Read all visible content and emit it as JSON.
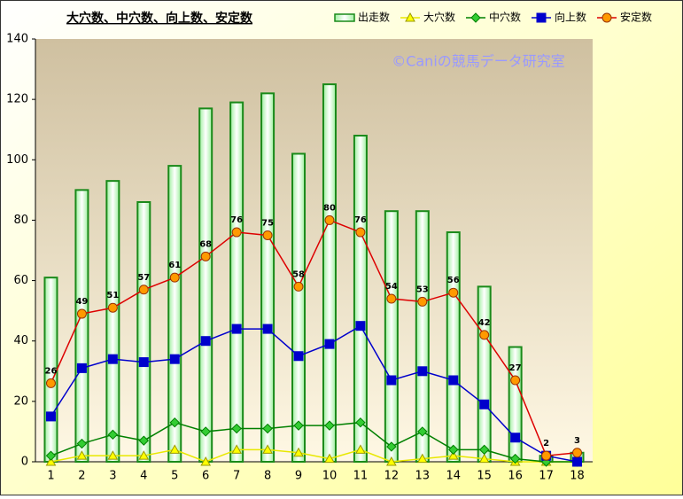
{
  "chart_data": {
    "type": "bar-line",
    "title": "大穴数、中穴数、向上数、安定数",
    "annotation": "©Caniの競馬データ研究室",
    "categories": [
      "1",
      "2",
      "3",
      "4",
      "5",
      "6",
      "7",
      "8",
      "9",
      "10",
      "11",
      "12",
      "13",
      "14",
      "15",
      "16",
      "17",
      "18"
    ],
    "series": [
      {
        "name": "出走数",
        "type": "bar",
        "color": "#1a8a1a",
        "values": [
          61,
          90,
          93,
          86,
          98,
          117,
          119,
          122,
          102,
          125,
          108,
          83,
          83,
          76,
          58,
          38,
          2,
          3
        ]
      },
      {
        "name": "大穴数",
        "type": "line",
        "marker": "triangle",
        "color": "#e8e800",
        "values": [
          0,
          2,
          2,
          2,
          4,
          0,
          4,
          4,
          3,
          1,
          4,
          0,
          1,
          2,
          1,
          0,
          0,
          0
        ]
      },
      {
        "name": "中穴数",
        "type": "line",
        "marker": "diamond",
        "color": "#008000",
        "values": [
          2,
          6,
          9,
          7,
          13,
          10,
          11,
          11,
          12,
          12,
          13,
          5,
          10,
          4,
          4,
          1,
          0,
          0
        ]
      },
      {
        "name": "向上数",
        "type": "line",
        "marker": "square",
        "color": "#0000cc",
        "values": [
          15,
          31,
          34,
          33,
          34,
          40,
          44,
          44,
          35,
          39,
          45,
          27,
          30,
          27,
          19,
          8,
          2,
          0
        ]
      },
      {
        "name": "安定数",
        "type": "line",
        "marker": "circle",
        "color": "#dd0000",
        "labels": true,
        "values": [
          26,
          49,
          51,
          57,
          61,
          68,
          76,
          75,
          58,
          80,
          76,
          54,
          53,
          56,
          42,
          27,
          2,
          3
        ]
      }
    ],
    "ylim": [
      0,
      140
    ],
    "yticks": [
      0,
      20,
      40,
      60,
      80,
      100,
      120,
      140
    ]
  }
}
